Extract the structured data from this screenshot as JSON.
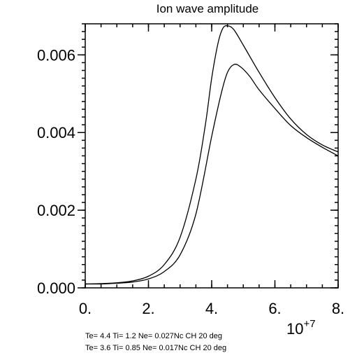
{
  "chart_data": {
    "type": "line",
    "title": "Ion wave amplitude",
    "xlabel": "",
    "ylabel": "",
    "xlim": [
      0,
      8
    ],
    "ylim": [
      0,
      0.0068
    ],
    "x_multiplier_label": "10",
    "x_multiplier_exponent": "+7",
    "x_ticks": [
      {
        "value": 0,
        "label": "0."
      },
      {
        "value": 2,
        "label": "2."
      },
      {
        "value": 4,
        "label": "4."
      },
      {
        "value": 6,
        "label": "6."
      },
      {
        "value": 8,
        "label": "8."
      }
    ],
    "y_ticks": [
      {
        "value": 0.0,
        "label": "0.000"
      },
      {
        "value": 0.002,
        "label": "0.002"
      },
      {
        "value": 0.004,
        "label": "0.004"
      },
      {
        "value": 0.006,
        "label": "0.006"
      }
    ],
    "series": [
      {
        "stroke": "#000000",
        "points": [
          [
            0,
            0.0001
          ],
          [
            0.5,
            0.00011
          ],
          [
            1.0,
            0.00013
          ],
          [
            1.5,
            0.00018
          ],
          [
            2.0,
            0.0003
          ],
          [
            2.5,
            0.0006
          ],
          [
            3.0,
            0.0013
          ],
          [
            3.5,
            0.0028
          ],
          [
            3.8,
            0.0042
          ],
          [
            4.0,
            0.0054
          ],
          [
            4.2,
            0.0063
          ],
          [
            4.35,
            0.00668
          ],
          [
            4.5,
            0.00675
          ],
          [
            4.7,
            0.00665
          ],
          [
            5.0,
            0.00625
          ],
          [
            5.5,
            0.00555
          ],
          [
            6.0,
            0.0049
          ],
          [
            6.5,
            0.00435
          ],
          [
            7.0,
            0.00395
          ],
          [
            7.5,
            0.00368
          ],
          [
            8.0,
            0.0035
          ]
        ]
      },
      {
        "stroke": "#000000",
        "points": [
          [
            0,
            0.0001
          ],
          [
            0.5,
            0.0001
          ],
          [
            1.0,
            0.00012
          ],
          [
            1.5,
            0.00015
          ],
          [
            2.0,
            0.00023
          ],
          [
            2.5,
            0.00042
          ],
          [
            3.0,
            0.00085
          ],
          [
            3.5,
            0.0019
          ],
          [
            4.0,
            0.0039
          ],
          [
            4.3,
            0.005
          ],
          [
            4.5,
            0.00555
          ],
          [
            4.7,
            0.00575
          ],
          [
            4.9,
            0.0057
          ],
          [
            5.2,
            0.00545
          ],
          [
            5.5,
            0.0051
          ],
          [
            6.0,
            0.00462
          ],
          [
            6.5,
            0.00418
          ],
          [
            7.0,
            0.00387
          ],
          [
            7.5,
            0.00362
          ],
          [
            8.0,
            0.0034
          ]
        ]
      }
    ],
    "annotations": [
      "Te= 4.4 Ti= 1.2 Ne= 0.027Nc CH 20 deg",
      "Te= 3.6 Ti= 0.85 Ne= 0.017Nc CH 20 deg"
    ]
  }
}
